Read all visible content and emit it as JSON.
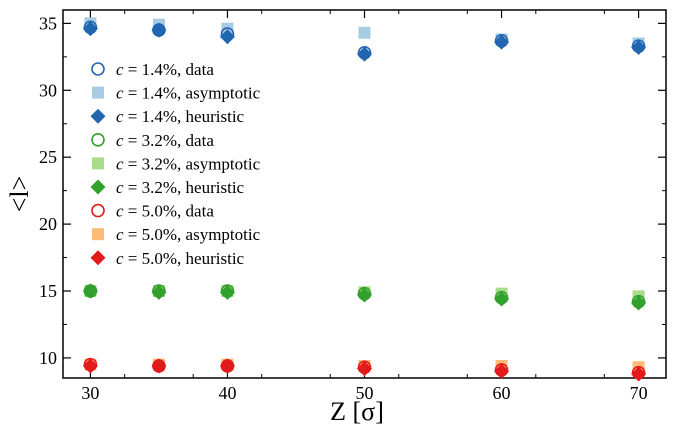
{
  "chart_data": {
    "type": "scatter",
    "title": "",
    "xlabel": "Z [σ]",
    "ylabel": "<l>",
    "xlim": [
      28,
      72
    ],
    "ylim": [
      8.5,
      36
    ],
    "x_ticks": [
      30,
      40,
      50,
      60,
      70
    ],
    "y_ticks": [
      10,
      15,
      20,
      25,
      30,
      35
    ],
    "grid": false,
    "legend_position": "upper-left",
    "series": [
      {
        "name": "c = 1.4%, data",
        "marker": "open-circle",
        "color": "#2166b0",
        "x": [
          30,
          35,
          40,
          50,
          60,
          70
        ],
        "y": [
          34.7,
          34.5,
          34.2,
          32.8,
          33.7,
          33.3
        ]
      },
      {
        "name": "c = 1.4%, asymptotic",
        "marker": "square",
        "color": "#a6cbe3",
        "x": [
          30,
          35,
          40,
          50,
          60,
          70
        ],
        "y": [
          35.0,
          34.9,
          34.6,
          34.3,
          33.8,
          33.5
        ]
      },
      {
        "name": "c = 1.4%, heuristic",
        "marker": "diamond",
        "color": "#2166b0",
        "x": [
          30,
          35,
          40,
          50,
          60,
          70
        ],
        "y": [
          34.6,
          34.5,
          34.0,
          32.7,
          33.6,
          33.2
        ]
      },
      {
        "name": "c = 3.2%, data",
        "marker": "open-circle",
        "color": "#31a02c",
        "x": [
          30,
          35,
          40,
          50,
          60,
          70
        ],
        "y": [
          15.0,
          15.0,
          15.0,
          14.8,
          14.5,
          14.2
        ]
      },
      {
        "name": "c = 3.2%, asymptotic",
        "marker": "square",
        "color": "#a8dc8a",
        "x": [
          30,
          35,
          40,
          50,
          60,
          70
        ],
        "y": [
          15.0,
          15.0,
          15.0,
          14.9,
          14.8,
          14.6
        ]
      },
      {
        "name": "c = 3.2%, heuristic",
        "marker": "diamond",
        "color": "#31a02c",
        "x": [
          30,
          35,
          40,
          50,
          60,
          70
        ],
        "y": [
          15.0,
          14.9,
          14.9,
          14.7,
          14.4,
          14.1
        ]
      },
      {
        "name": "c = 5.0%, data",
        "marker": "open-circle",
        "color": "#e31a1c",
        "x": [
          30,
          35,
          40,
          50,
          60,
          70
        ],
        "y": [
          9.5,
          9.4,
          9.4,
          9.3,
          9.1,
          8.9
        ]
      },
      {
        "name": "c = 5.0%, asymptotic",
        "marker": "square",
        "color": "#fdbb78",
        "x": [
          30,
          35,
          40,
          50,
          60,
          70
        ],
        "y": [
          9.5,
          9.5,
          9.5,
          9.4,
          9.4,
          9.3
        ]
      },
      {
        "name": "c = 5.0%, heuristic",
        "marker": "diamond",
        "color": "#e31a1c",
        "x": [
          30,
          35,
          40,
          50,
          60,
          70
        ],
        "y": [
          9.4,
          9.4,
          9.4,
          9.2,
          9.0,
          8.8
        ]
      }
    ]
  }
}
